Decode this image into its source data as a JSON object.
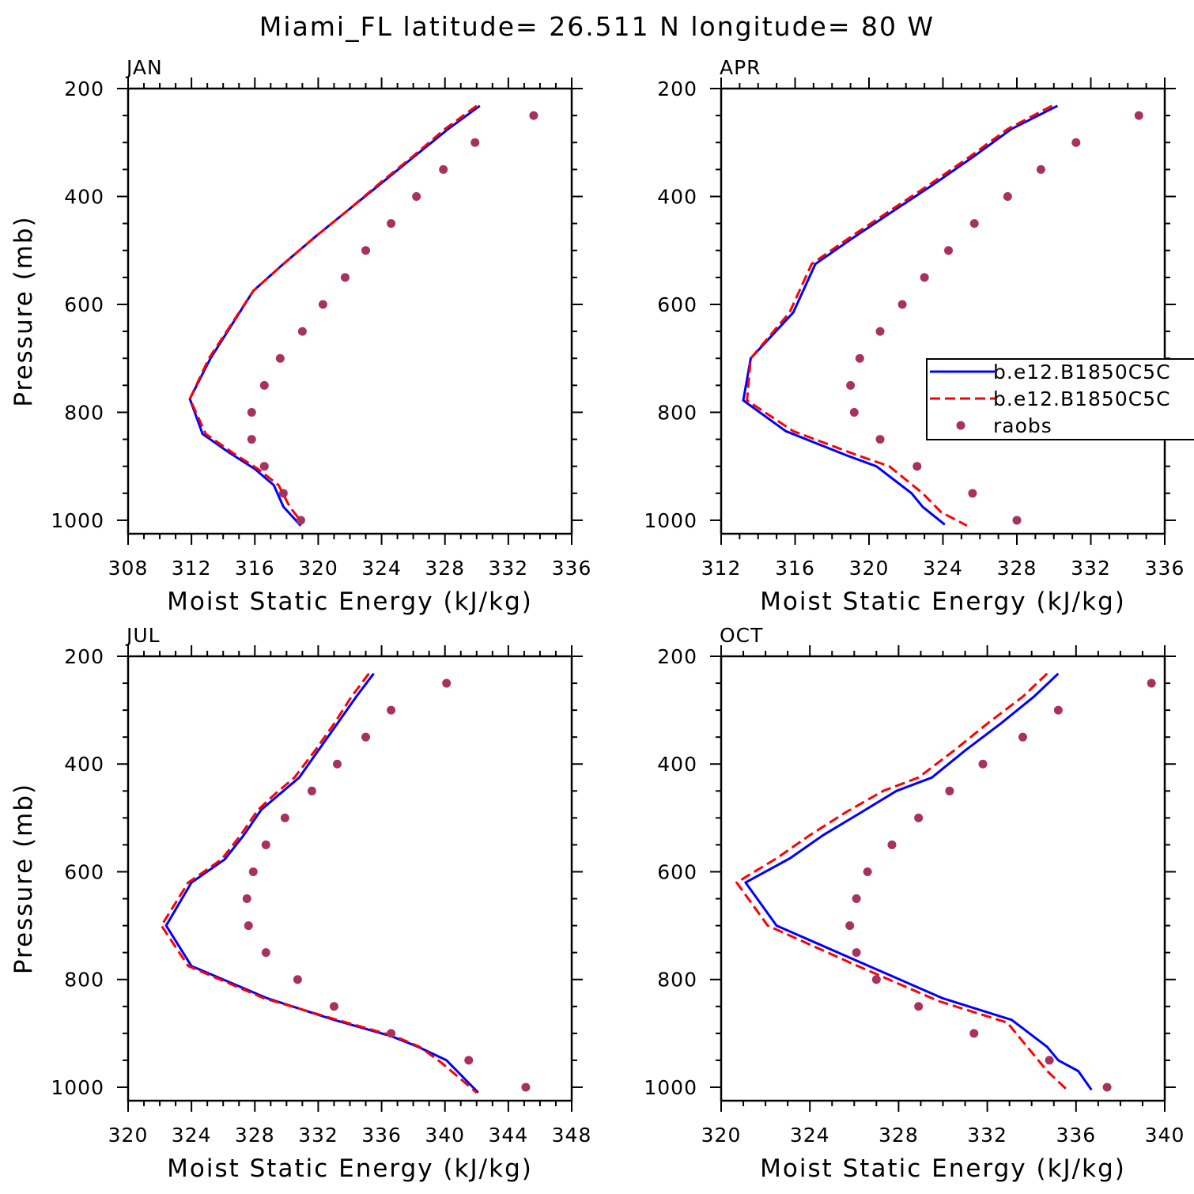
{
  "chart_data": {
    "title": "Miami_FL  latitude= 26.511 N longitude= 80 W",
    "legend": {
      "location": "APR panel, right edge",
      "entries": [
        {
          "label": "b.e12.B1850C5C",
          "series": "model_1",
          "style": "solid",
          "color": "#0000ff"
        },
        {
          "label": "b.e12.B1850C5C",
          "series": "model_2",
          "style": "dashed",
          "color": "#ff0000"
        },
        {
          "label": "raobs",
          "series": "raobs",
          "style": "marker",
          "color": "#a8325e"
        }
      ]
    },
    "panels": [
      {
        "type": "line",
        "title": "JAN",
        "xlabel": "Moist Static Energy (kJ/kg)",
        "ylabel": "Pressure (mb)",
        "xlim": [
          308,
          336
        ],
        "xticks": [
          308,
          312,
          316,
          320,
          324,
          328,
          332,
          336
        ],
        "ylim": [
          1025,
          200
        ],
        "yticks": [
          200,
          400,
          600,
          800,
          1000
        ],
        "series": [
          {
            "id": "model_1",
            "color": "#0000ff",
            "style": "solid",
            "x": [
              330.2,
              328.2,
              326.1,
              324.0,
              321.9,
              319.8,
              317.8,
              315.9,
              313.2,
              311.9,
              312.7,
              314.4,
              316.0,
              317.2,
              317.8,
              318.9
            ],
            "y": [
              232,
              275,
              325,
              375,
              425,
              475,
              525,
              575,
              700,
              775,
              840,
              875,
              905,
              935,
              975,
              1010
            ]
          },
          {
            "id": "model_2",
            "color": "#ff0000",
            "style": "dashed",
            "x": [
              330.0,
              328.0,
              326.0,
              323.9,
              321.9,
              319.8,
              317.8,
              315.9,
              313.1,
              311.9,
              312.9,
              314.6,
              316.2,
              317.5,
              318.2,
              319.0
            ],
            "y": [
              232,
              275,
              325,
              375,
              425,
              475,
              525,
              575,
              700,
              775,
              840,
              875,
              905,
              935,
              975,
              1005
            ]
          },
          {
            "id": "raobs",
            "color": "#a8325e",
            "style": "marker",
            "x": [
              333.6,
              329.9,
              327.9,
              326.2,
              324.6,
              323.0,
              321.7,
              320.3,
              319.0,
              317.6,
              316.6,
              315.8,
              315.8,
              316.6,
              317.8,
              318.9
            ],
            "y": [
              250,
              300,
              350,
              400,
              450,
              500,
              550,
              600,
              650,
              700,
              750,
              800,
              850,
              900,
              950,
              1000
            ]
          }
        ]
      },
      {
        "type": "line",
        "title": "APR",
        "xlabel": "Moist Static Energy (kJ/kg)",
        "ylabel": "",
        "xlim": [
          312,
          336
        ],
        "xticks": [
          312,
          316,
          320,
          324,
          328,
          332,
          336
        ],
        "ylim": [
          1025,
          200
        ],
        "yticks": [
          200,
          400,
          600,
          800,
          1000
        ],
        "series": [
          {
            "id": "model_1",
            "color": "#0000ff",
            "style": "solid",
            "x": [
              330.2,
              327.7,
              325.7,
              323.6,
              321.4,
              319.2,
              317.1,
              315.9,
              313.6,
              313.2,
              315.5,
              318.8,
              320.4,
              322.3,
              322.9,
              324.1
            ],
            "y": [
              232,
              275,
              325,
              375,
              425,
              475,
              525,
              615,
              700,
              778,
              835,
              880,
              900,
              950,
              975,
              1008
            ]
          },
          {
            "id": "model_2",
            "color": "#ff0000",
            "style": "dashed",
            "x": [
              329.9,
              327.5,
              325.5,
              323.4,
              321.2,
              319.0,
              316.9,
              315.7,
              313.6,
              313.4,
              315.9,
              319.4,
              321.1,
              322.9,
              323.9,
              325.3
            ],
            "y": [
              232,
              275,
              325,
              375,
              425,
              475,
              525,
              615,
              700,
              778,
              835,
              880,
              900,
              950,
              985,
              1010
            ]
          },
          {
            "id": "raobs",
            "color": "#a8325e",
            "style": "marker",
            "x": [
              334.6,
              331.2,
              329.3,
              327.5,
              325.7,
              324.3,
              323.0,
              321.8,
              320.6,
              319.5,
              319.0,
              319.2,
              320.6,
              322.6,
              325.6,
              328.0
            ],
            "y": [
              250,
              300,
              350,
              400,
              450,
              500,
              550,
              600,
              650,
              700,
              750,
              800,
              850,
              900,
              950,
              1000
            ]
          }
        ]
      },
      {
        "type": "line",
        "title": "JUL",
        "xlabel": "Moist Static Energy (kJ/kg)",
        "ylabel": "Pressure (mb)",
        "xlim": [
          320,
          348
        ],
        "xticks": [
          320,
          324,
          328,
          332,
          336,
          340,
          344,
          348
        ],
        "ylim": [
          1025,
          200
        ],
        "yticks": [
          200,
          400,
          600,
          800,
          1000
        ],
        "series": [
          {
            "id": "model_1",
            "color": "#0000ff",
            "style": "solid",
            "x": [
              335.5,
              334.4,
              333.2,
              332.0,
              330.8,
              329.6,
              328.4,
              327.3,
              326.1,
              324.0,
              322.4,
              324.0,
              328.8,
              333.0,
              336.6,
              338.3,
              340.1,
              342.1
            ],
            "y": [
              232,
              275,
              325,
              375,
              425,
              455,
              485,
              532,
              577,
              620,
              700,
              775,
              835,
              875,
              905,
              925,
              950,
              1010
            ]
          },
          {
            "id": "model_2",
            "color": "#ff0000",
            "style": "dashed",
            "x": [
              335.2,
              334.1,
              333.0,
              331.8,
              330.5,
              329.3,
              328.2,
              327.1,
              325.9,
              323.8,
              322.1,
              323.8,
              328.6,
              333.2,
              336.8,
              338.4,
              339.8,
              342.0
            ],
            "y": [
              232,
              275,
              325,
              375,
              425,
              455,
              485,
              532,
              577,
              620,
              700,
              775,
              835,
              875,
              905,
              925,
              955,
              1010
            ]
          },
          {
            "id": "raobs",
            "color": "#a8325e",
            "style": "marker",
            "x": [
              340.1,
              336.6,
              335.0,
              333.2,
              331.6,
              329.9,
              328.7,
              327.9,
              327.5,
              327.6,
              328.7,
              330.7,
              333.0,
              336.6,
              341.5,
              345.1
            ],
            "y": [
              250,
              300,
              350,
              400,
              450,
              500,
              550,
              600,
              650,
              700,
              750,
              800,
              850,
              900,
              950,
              1000
            ]
          }
        ]
      },
      {
        "type": "line",
        "title": "OCT",
        "xlabel": "Moist Static Energy (kJ/kg)",
        "ylabel": "",
        "xlim": [
          320,
          340
        ],
        "xticks": [
          320,
          324,
          328,
          332,
          336,
          340
        ],
        "ylim": [
          1025,
          200
        ],
        "yticks": [
          200,
          400,
          600,
          800,
          1000
        ],
        "series": [
          {
            "id": "model_1",
            "color": "#0000ff",
            "style": "solid",
            "x": [
              335.2,
              334.1,
              332.6,
              331.0,
              329.5,
              327.9,
              326.3,
              324.6,
              323.1,
              321.1,
              322.5,
              326.5,
              330.0,
              333.1,
              334.7,
              335.2,
              336.1,
              336.7
            ],
            "y": [
              232,
              275,
              325,
              375,
              425,
              450,
              490,
              532,
              575,
              620,
              700,
              772,
              835,
              875,
              925,
              950,
              970,
              1005
            ]
          },
          {
            "id": "model_2",
            "color": "#ff0000",
            "style": "dashed",
            "x": [
              334.7,
              333.6,
              332.0,
              330.5,
              328.9,
              327.3,
              325.6,
              324.0,
              322.5,
              320.7,
              322.1,
              326.0,
              329.8,
              332.9,
              334.1,
              334.7,
              335.6
            ],
            "y": [
              232,
              275,
              325,
              375,
              425,
              450,
              490,
              532,
              575,
              620,
              700,
              772,
              840,
              880,
              940,
              970,
              1005
            ]
          },
          {
            "id": "raobs",
            "color": "#a8325e",
            "style": "marker",
            "x": [
              339.4,
              335.2,
              333.6,
              331.8,
              330.3,
              328.9,
              327.7,
              326.6,
              326.1,
              325.8,
              326.1,
              327.0,
              328.9,
              331.4,
              334.8,
              337.4
            ],
            "y": [
              250,
              300,
              350,
              400,
              450,
              500,
              550,
              600,
              650,
              700,
              750,
              800,
              850,
              900,
              950,
              1000
            ]
          }
        ]
      }
    ]
  }
}
